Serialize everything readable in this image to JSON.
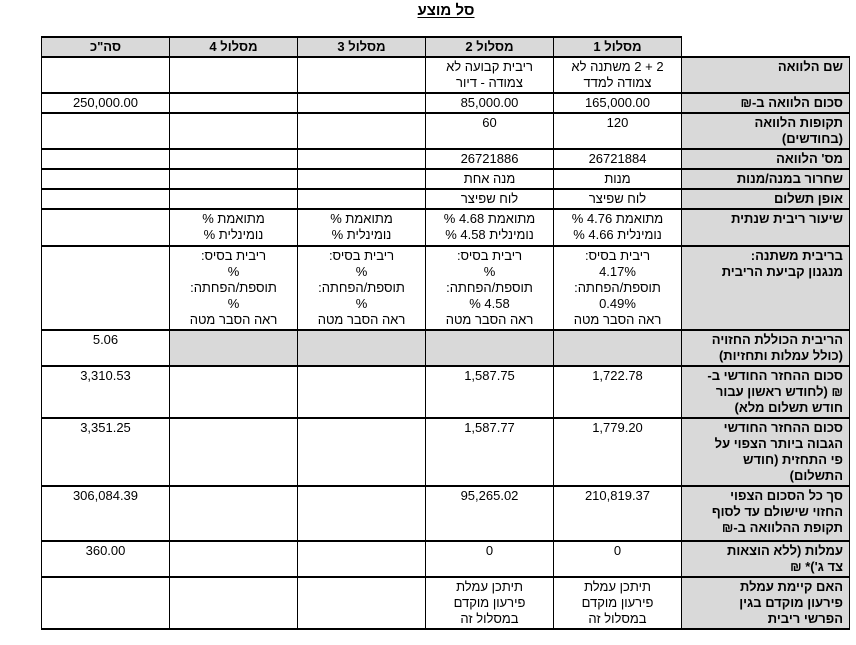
{
  "title": "סל מוצע",
  "colors": {
    "shading": "#d9d9d9",
    "border": "#000000"
  },
  "table": {
    "columns": [
      "מסלול 1",
      "מסלול 2",
      "מסלול 3",
      "מסלול 4",
      "סה\"כ"
    ],
    "rows": [
      {
        "label": "שם הלוואה",
        "cells": [
          "2 + 2 משתנה לא\nצמודה למדד",
          "ריבית קבועה לא\nצמודה - דיור",
          "",
          "",
          ""
        ],
        "shaded_tracks": false
      },
      {
        "label": "סכום הלוואה ב-₪",
        "cells": [
          "165,000.00",
          "85,000.00",
          "",
          "",
          "250,000.00"
        ],
        "shaded_tracks": false
      },
      {
        "label": "תקופות הלוואה\n(בחודשים)",
        "cells": [
          "120",
          "60",
          "",
          "",
          ""
        ],
        "shaded_tracks": false
      },
      {
        "label": "מס' הלוואה",
        "cells": [
          "26721884",
          "26721886",
          "",
          "",
          ""
        ],
        "shaded_tracks": false
      },
      {
        "label": "שחרור במנה/מנות",
        "cells": [
          "מנות",
          "מנה אחת",
          "",
          "",
          ""
        ],
        "shaded_tracks": false
      },
      {
        "label": "אופן תשלום",
        "cells": [
          "לוח שפיצר",
          "לוח שפיצר",
          "",
          "",
          ""
        ],
        "shaded_tracks": false
      },
      {
        "label": "שיעור ריבית שנתית",
        "cells": [
          "מתואמת 4.76 %\nנומינלית 4.66 %",
          "מתואמת 4.68 %\nנומינלית 4.58 %",
          "מתואמת %\nנומינלית %",
          "מתואמת %\nנומינלית %",
          ""
        ],
        "shaded_tracks": false
      },
      {
        "label": "בריבית משתנה:\nמנגנון קביעת הריבית",
        "cells": [
          "ריבית בסיס:\n4.17%\nתוספת/הפחתה:\n0.49%\nראה הסבר מטה",
          "ריבית בסיס:\n%\nתוספת/הפחתה:\n4.58 %\nראה הסבר מטה",
          "ריבית בסיס:\n%\nתוספת/הפחתה:\n%\nראה הסבר מטה",
          "ריבית בסיס:\n%\nתוספת/הפחתה:\n%\nראה הסבר מטה",
          ""
        ],
        "shaded_tracks": false
      },
      {
        "label": "הריבית הכוללת החזויה\n(כולל עמלות ותחזיות)",
        "cells": [
          "",
          "",
          "",
          "",
          "5.06"
        ],
        "shaded_tracks": true
      },
      {
        "label": "סכום ההחזר החודשי ב-\n₪ (לחודש ראשון עבור\nחודש תשלום מלא)",
        "cells": [
          "1,722.78",
          "1,587.75",
          "",
          "",
          "3,310.53"
        ],
        "shaded_tracks": false
      },
      {
        "label": "סכום ההחזר החודשי\nהגבוה ביותר הצפוי על\nפי התחזית (חודש\nהתשלום)",
        "cells": [
          "1,779.20",
          "1,587.77",
          "",
          "",
          "3,351.25"
        ],
        "shaded_tracks": false
      },
      {
        "label": "סך כל הסכום הצפוי\nהחזוי שישולם עד לסוף\nתקופת ההלוואה ב-₪",
        "cells": [
          "210,819.37",
          "95,265.02",
          "",
          "",
          "306,084.39"
        ],
        "shaded_tracks": false
      },
      {
        "label": "עמלות (ללא הוצאות\nצד ג')* ₪",
        "cells": [
          "0",
          "0",
          "",
          "",
          "360.00"
        ],
        "shaded_tracks": false
      },
      {
        "label": "האם קיימת עמלת\nפירעון מוקדם בגין\nהפרשי ריבית",
        "cells": [
          "תיתכן עמלת\nפירעון מוקדם\nבמסלול זה",
          "תיתכן עמלת\nפירעון מוקדם\nבמסלול זה",
          "",
          "",
          ""
        ],
        "shaded_tracks": false
      }
    ]
  }
}
